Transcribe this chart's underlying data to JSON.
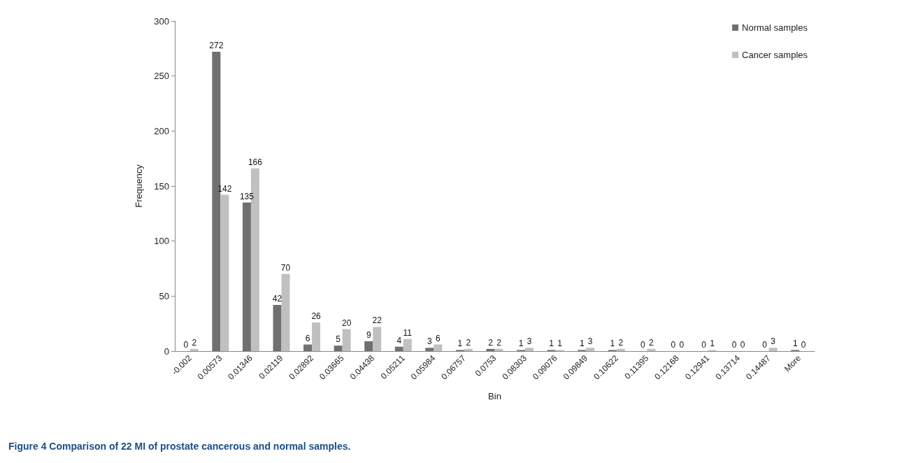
{
  "chart_data": {
    "type": "bar",
    "xlabel": "Bin",
    "ylabel": "Frequency",
    "categories": [
      "-0.002",
      "0.00573",
      "0.01346",
      "0.02119",
      "0.02892",
      "0.03665",
      "0.04438",
      "0.05211",
      "0.05984",
      "0.06757",
      "0.0753",
      "0.08303",
      "0.09076",
      "0.09849",
      "0.10622",
      "0.11395",
      "0.12168",
      "0.12941",
      "0.13714",
      "0.14487",
      "More"
    ],
    "series": [
      {
        "name": "Normal samples",
        "color": "#707070",
        "values": [
          0,
          272,
          135,
          42,
          6,
          5,
          9,
          4,
          3,
          1,
          2,
          1,
          1,
          1,
          1,
          0,
          0,
          0,
          0,
          0,
          1
        ]
      },
      {
        "name": "Cancer samples",
        "color": "#c0c0c0",
        "values": [
          2,
          142,
          166,
          70,
          26,
          20,
          22,
          11,
          6,
          2,
          2,
          3,
          1,
          3,
          2,
          2,
          0,
          1,
          0,
          3,
          0
        ]
      }
    ],
    "ylim": [
      0,
      300
    ],
    "yticks": [
      0,
      50,
      100,
      150,
      200,
      250,
      300
    ],
    "grid": false,
    "legend": "top right",
    "data_labels": true,
    "annotations": [
      "Figure 4 Comparison of 22 MI of prostate cancerous and normal samples."
    ]
  }
}
